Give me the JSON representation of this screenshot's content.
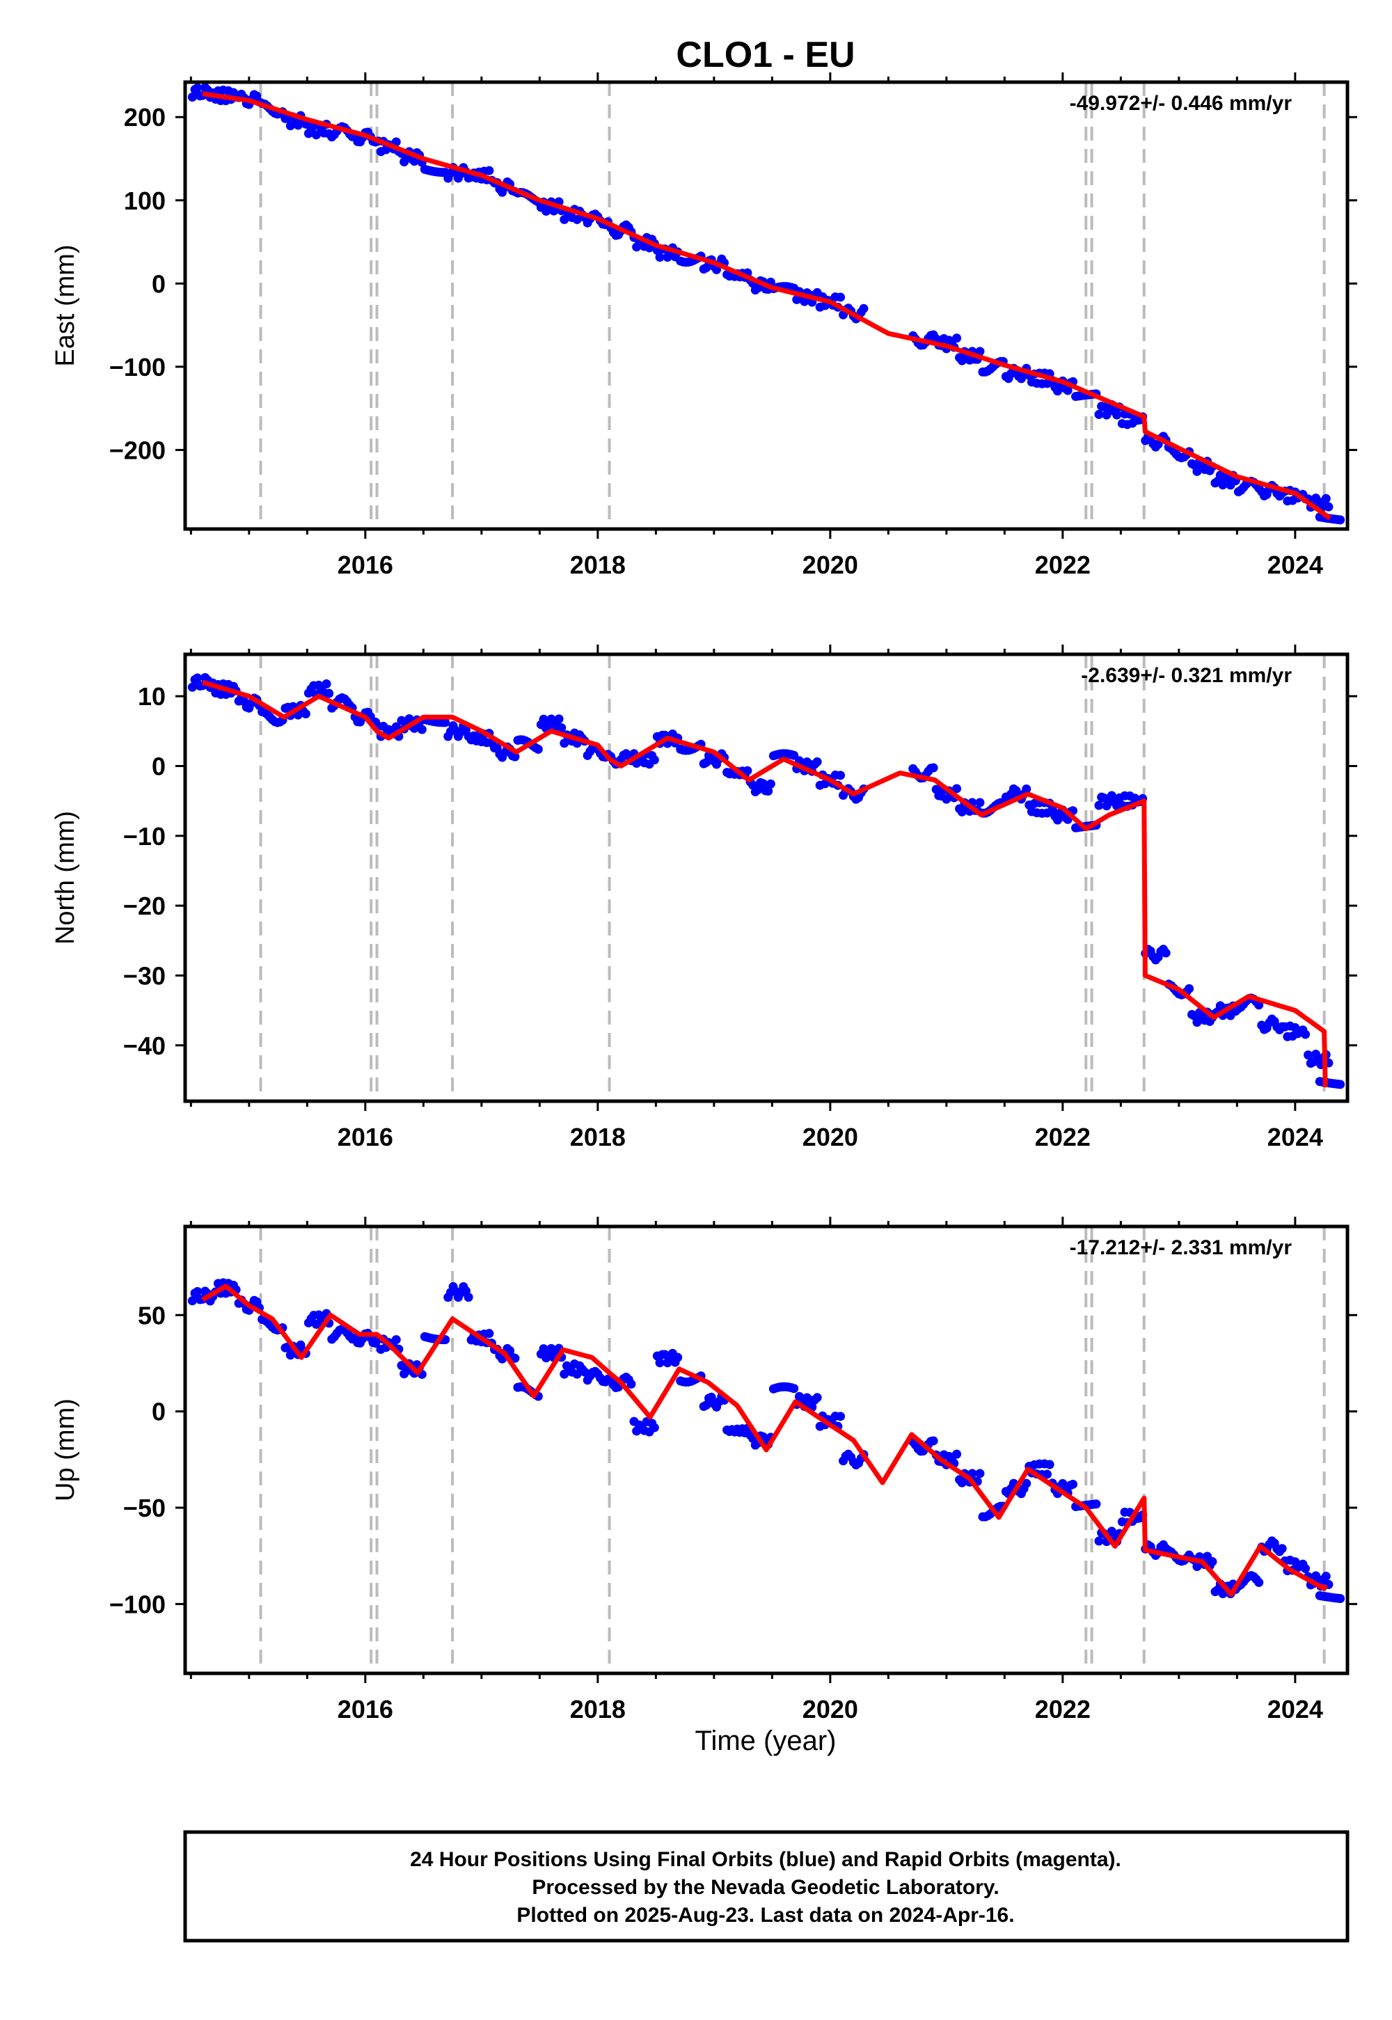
{
  "title": "CLO1 - EU",
  "x_axis_label": "Time (year)",
  "footer": {
    "line1": "24 Hour Positions Using Final Orbits (blue) and Rapid Orbits (magenta).",
    "line2": "Processed by the Nevada Geodetic Laboratory.",
    "line3": "Plotted on 2025-Aug-23. Last data on 2024-Apr-16."
  },
  "colors": {
    "data": "#0000ff",
    "model": "#ff0000",
    "steps": "#bbbbbb",
    "frame": "#000000"
  },
  "chart_data": [
    {
      "type": "scatter",
      "ylabel": "East (mm)",
      "rate_label": "-49.972+/- 0.446 mm/yr",
      "xlim": [
        2014.45,
        2024.45
      ],
      "ylim": [
        -295,
        242
      ],
      "xticks": [
        2016,
        2018,
        2020,
        2022,
        2024
      ],
      "yticks": [
        -200,
        -100,
        0,
        100,
        200
      ],
      "ytick_labels": [
        "−200",
        "−100",
        "0",
        "100",
        "200"
      ],
      "step_lines_x": [
        2015.1,
        2016.05,
        2016.1,
        2016.75,
        2018.1,
        2022.2,
        2022.25,
        2022.7,
        2024.25
      ],
      "points": {
        "x": [
          2014.6,
          2014.8,
          2015.0,
          2015.2,
          2015.4,
          2015.6,
          2015.8,
          2016.0,
          2016.2,
          2016.4,
          2016.6,
          2016.8,
          2017.0,
          2017.2,
          2017.4,
          2017.6,
          2017.8,
          2018.0,
          2018.2,
          2018.4,
          2018.6,
          2018.8,
          2019.0,
          2019.2,
          2019.4,
          2019.6,
          2019.8,
          2020.0,
          2020.2,
          2020.8,
          2021.0,
          2021.2,
          2021.4,
          2021.6,
          2021.8,
          2022.0,
          2022.2,
          2022.4,
          2022.6,
          2022.8,
          2023.0,
          2023.2,
          2023.4,
          2023.6,
          2023.8,
          2024.0,
          2024.2,
          2024.3
        ],
        "y": [
          230,
          226,
          221,
          210,
          196,
          185,
          182,
          176,
          165,
          152,
          140,
          133,
          130,
          116,
          103,
          92,
          83,
          77,
          64,
          49,
          38,
          32,
          23,
          10,
          -2,
          -10,
          -16,
          -22,
          -36,
          -68,
          -72,
          -88,
          -100,
          -108,
          -114,
          -123,
          -137,
          -152,
          -163,
          -190,
          -203,
          -220,
          -236,
          -244,
          -249,
          -255,
          -264,
          -279
        ]
      },
      "model": {
        "x": [
          2014.6,
          2015.0,
          2015.5,
          2016.0,
          2016.5,
          2017.0,
          2017.5,
          2018.0,
          2018.5,
          2019.0,
          2019.5,
          2020.0,
          2020.5,
          2021.0,
          2021.5,
          2022.0,
          2022.5,
          2022.7,
          2022.71,
          2023.0,
          2023.5,
          2024.0,
          2024.3
        ],
        "y": [
          228,
          220,
          197,
          178,
          150,
          130,
          100,
          78,
          46,
          25,
          -5,
          -22,
          -60,
          -75,
          -98,
          -118,
          -148,
          -160,
          -178,
          -198,
          -232,
          -252,
          -282
        ]
      }
    },
    {
      "type": "scatter",
      "ylabel": "North (mm)",
      "rate_label": "-2.639+/- 0.321 mm/yr",
      "xlim": [
        2014.45,
        2024.45
      ],
      "ylim": [
        -48,
        16
      ],
      "xticks": [
        2016,
        2018,
        2020,
        2022,
        2024
      ],
      "yticks": [
        -40,
        -30,
        -20,
        -10,
        0,
        10
      ],
      "ytick_labels": [
        "−40",
        "−30",
        "−20",
        "−10",
        "0",
        "10"
      ],
      "step_lines_x": [
        2015.1,
        2016.05,
        2016.1,
        2016.75,
        2018.1,
        2022.2,
        2022.25,
        2022.7,
        2024.25
      ],
      "points": {
        "x": [
          2014.6,
          2014.8,
          2015.0,
          2015.2,
          2015.4,
          2015.6,
          2015.8,
          2016.0,
          2016.2,
          2016.4,
          2016.6,
          2016.8,
          2017.0,
          2017.2,
          2017.4,
          2017.6,
          2017.8,
          2018.0,
          2018.2,
          2018.4,
          2018.6,
          2018.8,
          2019.0,
          2019.2,
          2019.4,
          2019.6,
          2019.8,
          2020.0,
          2020.2,
          2020.8,
          2021.0,
          2021.2,
          2021.4,
          2021.6,
          2021.8,
          2022.0,
          2022.2,
          2022.4,
          2022.6,
          2022.8,
          2023.0,
          2023.2,
          2023.4,
          2023.6,
          2023.8,
          2024.0,
          2024.2,
          2024.3
        ],
        "y": [
          12,
          11,
          9,
          7,
          8,
          11,
          9,
          7,
          5,
          6,
          7,
          5,
          4,
          2,
          3,
          6,
          4,
          2,
          1,
          1,
          4,
          3,
          1,
          -1,
          -3,
          1,
          0,
          -2,
          -4,
          -1,
          -4,
          -6,
          -6,
          -4,
          -6,
          -7,
          -9,
          -5,
          -5,
          -27,
          -32,
          -36,
          -35,
          -34,
          -37,
          -38,
          -42,
          -45
        ]
      },
      "model": {
        "x": [
          2014.6,
          2015.0,
          2015.3,
          2015.6,
          2016.0,
          2016.1,
          2016.2,
          2016.5,
          2016.75,
          2017.0,
          2017.3,
          2017.6,
          2018.0,
          2018.1,
          2018.2,
          2018.4,
          2018.6,
          2019.0,
          2019.3,
          2019.6,
          2020.0,
          2020.2,
          2020.6,
          2020.9,
          2021.3,
          2021.7,
          2022.0,
          2022.2,
          2022.4,
          2022.7,
          2022.71,
          2023.0,
          2023.3,
          2023.6,
          2024.0,
          2024.25,
          2024.26
        ],
        "y": [
          12,
          10,
          7,
          10,
          7,
          5,
          4,
          7,
          7,
          5,
          2,
          5,
          3,
          1,
          0,
          2,
          4,
          2,
          -2,
          1,
          -2,
          -4,
          -1,
          -2,
          -7,
          -4,
          -6,
          -9,
          -7,
          -5,
          -30,
          -32,
          -36,
          -33,
          -35,
          -38,
          -46
        ]
      }
    },
    {
      "type": "scatter",
      "ylabel": "Up (mm)",
      "rate_label": "-17.212+/- 2.331 mm/yr",
      "xlim": [
        2014.45,
        2024.45
      ],
      "ylim": [
        -136,
        96
      ],
      "xticks": [
        2016,
        2018,
        2020,
        2022,
        2024
      ],
      "yticks": [
        -100,
        -50,
        0,
        50
      ],
      "ytick_labels": [
        "−100",
        "−50",
        "0",
        "50"
      ],
      "step_lines_x": [
        2015.1,
        2016.05,
        2016.1,
        2016.75,
        2018.1,
        2022.2,
        2022.25,
        2022.7,
        2024.25
      ],
      "points": {
        "x": [
          2014.6,
          2014.8,
          2015.0,
          2015.2,
          2015.4,
          2015.6,
          2015.8,
          2016.0,
          2016.2,
          2016.4,
          2016.6,
          2016.8,
          2017.0,
          2017.2,
          2017.4,
          2017.6,
          2017.8,
          2018.0,
          2018.2,
          2018.4,
          2018.6,
          2018.8,
          2019.0,
          2019.2,
          2019.4,
          2019.6,
          2019.8,
          2020.0,
          2020.2,
          2020.8,
          2021.0,
          2021.2,
          2021.4,
          2021.6,
          2021.8,
          2022.0,
          2022.2,
          2022.4,
          2022.6,
          2022.8,
          2023.0,
          2023.2,
          2023.4,
          2023.6,
          2023.8,
          2024.0,
          2024.2,
          2024.3
        ],
        "y": [
          60,
          64,
          55,
          45,
          32,
          48,
          40,
          38,
          35,
          22,
          40,
          62,
          38,
          30,
          10,
          30,
          22,
          18,
          15,
          -8,
          28,
          18,
          5,
          -10,
          -15,
          10,
          5,
          -5,
          -25,
          -18,
          -25,
          -35,
          -52,
          -40,
          -30,
          -40,
          -50,
          -65,
          -55,
          -72,
          -75,
          -78,
          -92,
          -88,
          -70,
          -80,
          -88,
          -95
        ]
      },
      "model": {
        "x": [
          2014.6,
          2014.8,
          2015.0,
          2015.2,
          2015.45,
          2015.7,
          2015.95,
          2016.1,
          2016.2,
          2016.45,
          2016.75,
          2017.0,
          2017.2,
          2017.45,
          2017.7,
          2017.95,
          2018.1,
          2018.2,
          2018.45,
          2018.7,
          2018.95,
          2019.2,
          2019.45,
          2019.7,
          2019.95,
          2020.2,
          2020.45,
          2020.7,
          2020.95,
          2021.2,
          2021.45,
          2021.7,
          2021.95,
          2022.2,
          2022.45,
          2022.7,
          2022.71,
          2022.95,
          2023.2,
          2023.45,
          2023.7,
          2023.95,
          2024.25,
          2024.26
        ],
        "y": [
          58,
          65,
          55,
          48,
          28,
          50,
          40,
          40,
          35,
          20,
          48,
          38,
          30,
          8,
          32,
          28,
          20,
          15,
          -3,
          22,
          15,
          3,
          -20,
          5,
          -5,
          -15,
          -37,
          -12,
          -25,
          -35,
          -55,
          -30,
          -40,
          -50,
          -70,
          -45,
          -72,
          -75,
          -78,
          -95,
          -70,
          -82,
          -92,
          -90
        ]
      }
    }
  ]
}
